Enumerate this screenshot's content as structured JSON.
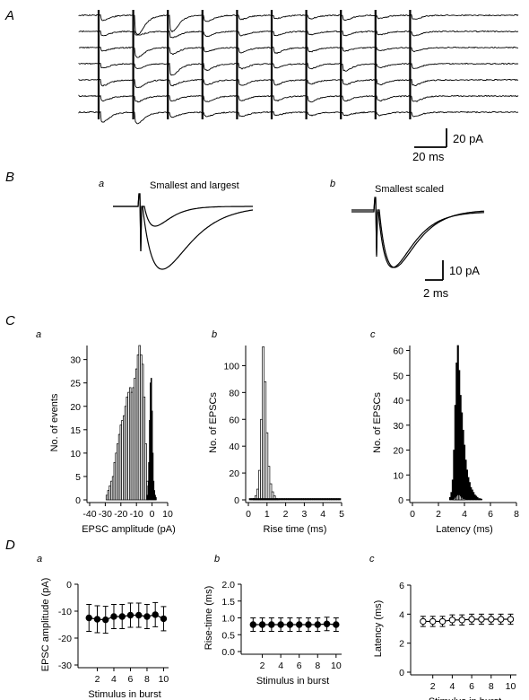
{
  "panels": {
    "A": {
      "label": "A",
      "scale_y_label": "20 pA",
      "scale_x_label": "20 ms",
      "trace_count": 7,
      "stimulus_count": 10
    },
    "B": {
      "label": "B",
      "a": {
        "label": "a",
        "title": "Smallest and largest"
      },
      "b": {
        "label": "b",
        "title": "Smallest scaled"
      },
      "scale_y_label": "10 pA",
      "scale_x_label": "2 ms"
    },
    "C": {
      "label": "C"
    },
    "D": {
      "label": "D"
    }
  },
  "chart_data": [
    {
      "id": "Ca",
      "panel_label": "a",
      "type": "bar",
      "xlabel": "EPSC amplitude (pA)",
      "ylabel": "No. of events",
      "xlim": [
        -40,
        10
      ],
      "ylim": [
        0,
        33
      ],
      "xticks": [
        -40,
        -30,
        -20,
        -10,
        0,
        10
      ],
      "yticks": [
        0,
        5,
        10,
        15,
        20,
        25,
        30
      ],
      "series": [
        {
          "name": "",
          "color": "#ffffff",
          "bin_width": 1,
          "x": [
            -29,
            -28,
            -27,
            -26,
            -25,
            -24,
            -23,
            -22,
            -21,
            -20,
            -19,
            -18,
            -17,
            -16,
            -15,
            -14,
            -13,
            -12,
            -11,
            -10,
            -9,
            -8,
            -7,
            -6,
            -5,
            -4,
            -3
          ],
          "values": [
            1,
            2,
            3,
            4,
            5,
            8,
            10,
            12,
            14,
            16,
            17,
            18,
            20,
            22,
            23,
            24,
            23,
            24,
            26,
            28,
            31,
            33,
            31,
            29,
            22,
            12,
            4
          ]
        },
        {
          "name": "",
          "color": "#000000",
          "bin_width": 0.5,
          "x": [
            -3,
            -2.5,
            -2,
            -1.5,
            -1,
            -0.5,
            0,
            0.5,
            1,
            1.5,
            2,
            2.5
          ],
          "values": [
            1,
            3,
            8,
            17,
            25,
            26,
            19,
            10,
            4,
            2,
            1,
            0.5
          ]
        }
      ]
    },
    {
      "id": "Cb",
      "panel_label": "b",
      "type": "bar",
      "xlabel": "Rise time (ms)",
      "ylabel": "No. of EPSCs",
      "xlim": [
        0,
        5
      ],
      "ylim": [
        0,
        115
      ],
      "xticks": [
        0,
        1,
        2,
        3,
        4,
        5
      ],
      "yticks": [
        0,
        20,
        40,
        60,
        80,
        100
      ],
      "series": [
        {
          "name": "",
          "color": "#ffffff",
          "bin_width": 0.1,
          "x": [
            0.3,
            0.4,
            0.5,
            0.6,
            0.7,
            0.8,
            0.9,
            1.0,
            1.1,
            1.2,
            1.3,
            1.4,
            1.5,
            1.6
          ],
          "values": [
            1,
            3,
            8,
            22,
            60,
            114,
            88,
            50,
            25,
            12,
            6,
            3,
            1,
            0.5
          ]
        },
        {
          "name": "",
          "color": "#000000",
          "bin_width": 0.1,
          "x": [
            0.1,
            0.2,
            0.3,
            0.4,
            0.5,
            0.6,
            0.7,
            0.8,
            0.9,
            1.0,
            1.1,
            1.2,
            1.3,
            1.4,
            1.5,
            1.6,
            1.7,
            1.8,
            1.9,
            2.0,
            2.1,
            2.2,
            2.3,
            2.4,
            2.5,
            2.6,
            2.7,
            2.8,
            2.9,
            3.0,
            3.1,
            3.2,
            3.3,
            3.4,
            3.5,
            3.6,
            3.7,
            3.8,
            3.9,
            4.0,
            4.1,
            4.2,
            4.3,
            4.4,
            4.5,
            4.6,
            4.7,
            4.8,
            4.9
          ],
          "values": [
            1,
            1,
            1,
            1,
            1,
            1,
            1,
            1,
            1,
            1,
            1,
            1,
            1,
            1,
            1,
            1,
            1,
            1,
            1,
            1,
            1,
            1,
            1,
            1,
            1,
            1,
            1,
            1,
            1,
            1,
            1,
            1,
            1,
            1,
            1,
            1,
            1,
            1,
            1,
            1,
            1,
            1,
            1,
            1,
            1,
            1,
            1,
            1,
            1
          ]
        }
      ]
    },
    {
      "id": "Cc",
      "panel_label": "c",
      "type": "bar",
      "xlabel": "Latency (ms)",
      "ylabel": "No. of EPSCs",
      "xlim": [
        0,
        8
      ],
      "ylim": [
        0,
        62
      ],
      "xticks": [
        0,
        2,
        4,
        6,
        8
      ],
      "yticks": [
        0,
        10,
        20,
        30,
        40,
        50,
        60
      ],
      "series": [
        {
          "name": "",
          "color": "#000000",
          "bin_width": 0.1,
          "x": [
            2.9,
            3.0,
            3.1,
            3.2,
            3.3,
            3.4,
            3.5,
            3.6,
            3.7,
            3.8,
            3.9,
            4.0,
            4.1,
            4.2,
            4.3,
            4.4,
            4.5,
            4.6,
            4.7,
            4.8,
            4.9,
            5.0,
            5.1,
            5.2,
            5.3
          ],
          "values": [
            1,
            3,
            8,
            20,
            38,
            55,
            62,
            52,
            42,
            35,
            28,
            22,
            16,
            12,
            9,
            7,
            5,
            4,
            3,
            2,
            1.5,
            1,
            0.5,
            0.5,
            0.3
          ]
        },
        {
          "name": "",
          "color": "#ffffff",
          "bin_width": 0.1,
          "x": [
            3.2,
            3.3,
            3.4,
            3.5,
            3.6,
            3.7,
            3.8,
            3.9,
            4.0
          ],
          "values": [
            0.5,
            1,
            1.5,
            2,
            2,
            1.5,
            1,
            0.5,
            0.5
          ]
        }
      ]
    },
    {
      "id": "Da",
      "panel_label": "a",
      "type": "line",
      "marker": "filled-circle",
      "xlabel": "Stimulus in burst",
      "ylabel": "EPSC amplitude (pA)",
      "xlim": [
        0,
        10.6
      ],
      "ylim": [
        -30,
        0
      ],
      "xticks": [
        2,
        4,
        6,
        8,
        10
      ],
      "yticks": [
        -30,
        -20,
        -10,
        0
      ],
      "series": [
        {
          "name": "",
          "x": [
            1,
            2,
            3,
            4,
            5,
            6,
            7,
            8,
            9,
            10
          ],
          "values": [
            -12.5,
            -13.0,
            -13.2,
            -12.0,
            -12.0,
            -11.5,
            -11.5,
            -12.0,
            -11.3,
            -12.8
          ],
          "err": [
            5,
            5,
            5,
            4.5,
            4.5,
            4.5,
            4.5,
            4.5,
            4.5,
            4.5
          ]
        }
      ]
    },
    {
      "id": "Db",
      "panel_label": "b",
      "type": "line",
      "marker": "filled-circle",
      "xlabel": "Stimulus in burst",
      "ylabel": "Rise-time (ms)",
      "xlim": [
        0,
        10.6
      ],
      "ylim": [
        0,
        2.0
      ],
      "xticks": [
        2,
        4,
        6,
        8,
        10
      ],
      "yticks": [
        0.0,
        0.5,
        1.0,
        1.5,
        2.0
      ],
      "yticklabels": [
        "0.0",
        "0.5",
        "1.0",
        "1.5",
        "2.0"
      ],
      "series": [
        {
          "name": "",
          "x": [
            1,
            2,
            3,
            4,
            5,
            6,
            7,
            8,
            9,
            10
          ],
          "values": [
            0.8,
            0.8,
            0.8,
            0.8,
            0.8,
            0.8,
            0.8,
            0.8,
            0.82,
            0.8
          ],
          "err": [
            0.2,
            0.2,
            0.2,
            0.2,
            0.2,
            0.2,
            0.2,
            0.2,
            0.2,
            0.2
          ]
        }
      ]
    },
    {
      "id": "Dc",
      "panel_label": "c",
      "type": "line",
      "marker": "open-circle",
      "xlabel": "Stimulus in burst",
      "ylabel": "Latency (ms)",
      "xlim": [
        0,
        10.6
      ],
      "ylim": [
        0,
        6
      ],
      "xticks": [
        2,
        4,
        6,
        8,
        10
      ],
      "yticks": [
        0,
        2,
        4,
        6
      ],
      "series": [
        {
          "name": "",
          "x": [
            1,
            2,
            3,
            4,
            5,
            6,
            7,
            8,
            9,
            10
          ],
          "values": [
            3.5,
            3.5,
            3.5,
            3.6,
            3.6,
            3.65,
            3.65,
            3.65,
            3.65,
            3.65
          ],
          "err": [
            0.35,
            0.35,
            0.35,
            0.35,
            0.35,
            0.35,
            0.35,
            0.35,
            0.35,
            0.35
          ]
        }
      ]
    }
  ]
}
